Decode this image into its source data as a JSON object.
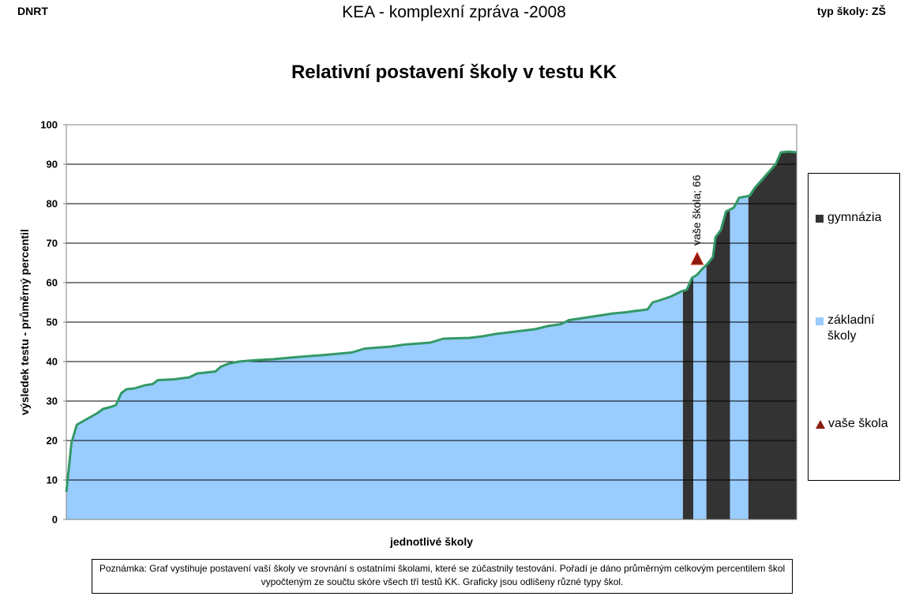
{
  "header": {
    "left": "DNRT",
    "center": "KEA - komplexní zpráva -2008",
    "right": "typ školy: ZŠ"
  },
  "chart_data": {
    "type": "area",
    "title": "Relativní postavení školy v testu KK",
    "xlabel": "jednotlivé školy",
    "ylabel": "výsledek testu - průměrný percentil",
    "ylim": [
      0,
      100
    ],
    "y_ticks": [
      "0",
      "10",
      "20",
      "30",
      "40",
      "50",
      "60",
      "70",
      "80",
      "90",
      "100"
    ],
    "grid": true,
    "legend_position": "right",
    "colors": {
      "gymnazia": "#333333",
      "zakladni": "#99ccff",
      "line": "#339966",
      "marker": "#8b1a10",
      "marker_edge": "#cc2200"
    },
    "series": [
      {
        "name": "gymnázia",
        "x_ranges": [
          [
            237,
            240
          ],
          [
            246,
            254
          ],
          [
            262,
            280
          ]
        ]
      },
      {
        "name": "základní školy",
        "x_ranges": [
          [
            1,
            236
          ],
          [
            241,
            245
          ],
          [
            255,
            261
          ]
        ]
      },
      {
        "name": "vaše škola",
        "x": 242,
        "y": 66
      }
    ],
    "n_schools": 280,
    "curve_points": [
      [
        1,
        7
      ],
      [
        3,
        19.5
      ],
      [
        5,
        24
      ],
      [
        9,
        25.5
      ],
      [
        13,
        27
      ],
      [
        15,
        28
      ],
      [
        18,
        28.5
      ],
      [
        20,
        29
      ],
      [
        22,
        32
      ],
      [
        24,
        33
      ],
      [
        27,
        33.2
      ],
      [
        31,
        34
      ],
      [
        34,
        34.3
      ],
      [
        36,
        35.3
      ],
      [
        42,
        35.5
      ],
      [
        48,
        36
      ],
      [
        51,
        37
      ],
      [
        54,
        37.2
      ],
      [
        58,
        37.5
      ],
      [
        60,
        38.7
      ],
      [
        63,
        39.5
      ],
      [
        67,
        40
      ],
      [
        72,
        40.3
      ],
      [
        80,
        40.6
      ],
      [
        90,
        41.2
      ],
      [
        100,
        41.7
      ],
      [
        110,
        42.3
      ],
      [
        115,
        43.3
      ],
      [
        125,
        43.8
      ],
      [
        130,
        44.3
      ],
      [
        140,
        44.8
      ],
      [
        145,
        45.8
      ],
      [
        155,
        46
      ],
      [
        160,
        46.4
      ],
      [
        165,
        47
      ],
      [
        175,
        47.8
      ],
      [
        180,
        48.2
      ],
      [
        185,
        49
      ],
      [
        190,
        49.5
      ],
      [
        193,
        50.5
      ],
      [
        200,
        51.2
      ],
      [
        205,
        51.7
      ],
      [
        210,
        52.2
      ],
      [
        215,
        52.5
      ],
      [
        218,
        52.8
      ],
      [
        223,
        53.2
      ],
      [
        225,
        55
      ],
      [
        228,
        55.6
      ],
      [
        232,
        56.5
      ],
      [
        236,
        57.8
      ],
      [
        238,
        58.2
      ],
      [
        240,
        61.2
      ],
      [
        242,
        62
      ],
      [
        244,
        63.5
      ],
      [
        246,
        64.8
      ],
      [
        248,
        66.5
      ],
      [
        249,
        71.5
      ],
      [
        251,
        73.3
      ],
      [
        253,
        78
      ],
      [
        256,
        79
      ],
      [
        258,
        81.5
      ],
      [
        262,
        82
      ],
      [
        264,
        84
      ],
      [
        266,
        85.5
      ],
      [
        270,
        88.5
      ],
      [
        272,
        90
      ],
      [
        274,
        93
      ],
      [
        277,
        93.2
      ],
      [
        280,
        93
      ]
    ]
  },
  "annotation": {
    "label": "vaše škola; 66"
  },
  "legend": {
    "items": [
      {
        "label": "gymnázia"
      },
      {
        "label": "základní školy"
      },
      {
        "label": "vaše škola"
      }
    ]
  },
  "note": {
    "text": "Poznámka: Graf vystihuje postavení vaší školy ve srovnání s ostatními školami, které se zúčastnily testování. Pořadí je dáno průměrným celkovým percentilem škol vypočteným ze součtu skóre všech tří testů KK. Graficky jsou odlišeny různé typy škol."
  }
}
